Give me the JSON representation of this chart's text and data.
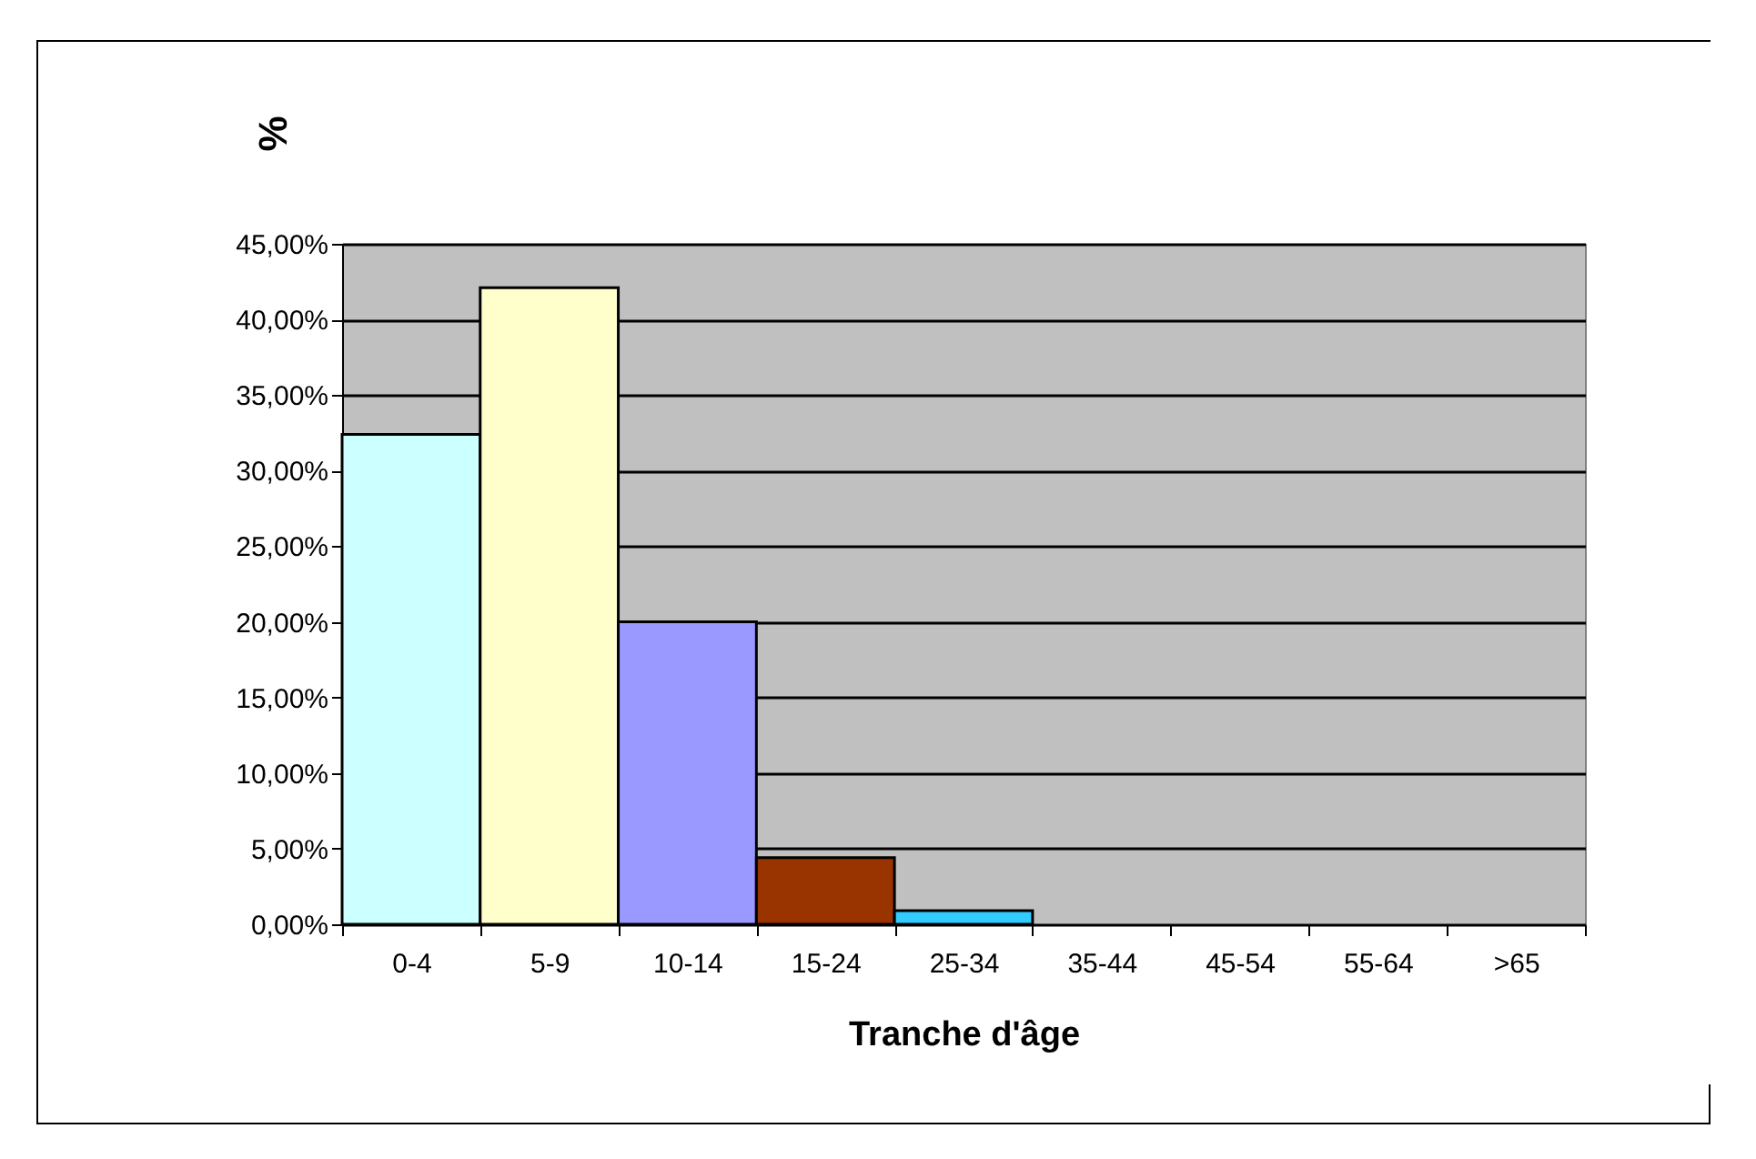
{
  "chart_data": {
    "type": "bar",
    "ylabel": "%",
    "xlabel": "Tranche d'âge",
    "categories": [
      "0-4",
      "5-9",
      "10-14",
      "15-24",
      "25-34",
      "35-44",
      "45-54",
      "55-64",
      ">65"
    ],
    "values": [
      32.4,
      42.1,
      20.0,
      4.4,
      0.9,
      null,
      null,
      null,
      null
    ],
    "colors": [
      "#ccffff",
      "#ffffcc",
      "#9999ff",
      "#993300",
      "#33ccff",
      null,
      null,
      null,
      null
    ],
    "ylim": [
      0,
      45
    ],
    "yticks": [
      {
        "value": 0,
        "label": "0,00%"
      },
      {
        "value": 5,
        "label": "5,00%"
      },
      {
        "value": 10,
        "label": "10,00%"
      },
      {
        "value": 15,
        "label": "15,00%"
      },
      {
        "value": 20,
        "label": "20,00%"
      },
      {
        "value": 25,
        "label": "25,00%"
      },
      {
        "value": 30,
        "label": "30,00%"
      },
      {
        "value": 35,
        "label": "35,00%"
      },
      {
        "value": 40,
        "label": "40,00%"
      },
      {
        "value": 45,
        "label": "45,00%"
      }
    ],
    "grid": "y"
  }
}
